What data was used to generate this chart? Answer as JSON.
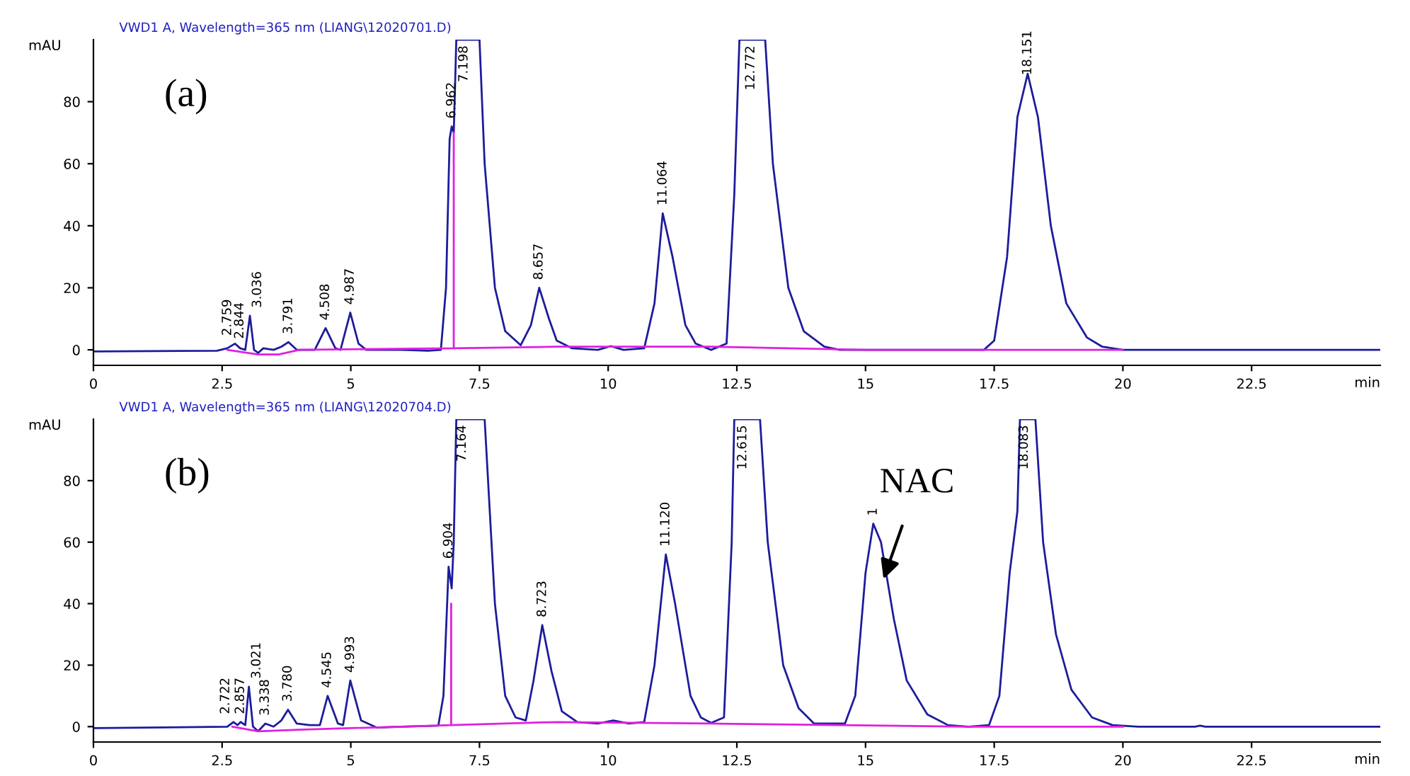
{
  "chart_data": [
    {
      "type": "line",
      "title": "VWD1 A, Wavelength=365 nm (LIANG\\12020701.D)",
      "xlabel": "min",
      "ylabel": "mAU",
      "xlim": [
        0,
        25
      ],
      "ylim": [
        -5,
        100
      ],
      "xticks": [
        0,
        2.5,
        5,
        7.5,
        10,
        12.5,
        15,
        17.5,
        20,
        22.5
      ],
      "yticks": [
        0,
        20,
        40,
        60,
        80
      ],
      "grid": false,
      "legend": false,
      "marker": "none",
      "line_style": "solid",
      "series": [
        {
          "color": "#1c1c9c",
          "x": [
            0,
            2.4,
            2.6,
            2.75,
            2.85,
            2.95,
            3.04,
            3.12,
            3.2,
            3.3,
            3.5,
            3.65,
            3.79,
            3.95,
            4.3,
            4.51,
            4.7,
            4.8,
            4.99,
            5.15,
            5.3,
            6.0,
            6.5,
            6.75,
            6.85,
            6.92,
            6.96,
            7.0,
            7.05,
            7.5,
            7.6,
            7.8,
            8.0,
            8.3,
            8.5,
            8.66,
            8.85,
            9.0,
            9.3,
            9.8,
            10.05,
            10.3,
            10.7,
            10.9,
            11.06,
            11.25,
            11.5,
            11.7,
            12.0,
            12.3,
            12.45,
            12.55,
            13.05,
            13.2,
            13.5,
            13.8,
            14.2,
            14.5,
            15,
            17.3,
            17.5,
            17.75,
            17.95,
            18.15,
            18.35,
            18.6,
            18.9,
            19.3,
            19.6,
            20,
            25
          ],
          "values": [
            -0.5,
            -0.3,
            0.5,
            2,
            0.5,
            0,
            11,
            0,
            -1,
            0.5,
            0,
            1,
            2.5,
            0,
            0,
            7,
            0.5,
            0,
            12,
            2,
            0,
            0,
            -0.3,
            0,
            20,
            68,
            72,
            70,
            100,
            100,
            60,
            20,
            6,
            1.5,
            8,
            20,
            10,
            3,
            0.5,
            0,
            1.2,
            0,
            0.5,
            15,
            44,
            30,
            8,
            2,
            0,
            2,
            50,
            100,
            100,
            60,
            20,
            6,
            1,
            0,
            0,
            0,
            3,
            30,
            75,
            89,
            75,
            40,
            15,
            4,
            1,
            0,
            0
          ]
        },
        {
          "color": "#e020e0",
          "x": [
            2.6,
            3.2,
            3.6,
            4.0,
            7.0,
            7.0,
            7.0,
            9.0,
            12,
            15,
            20
          ],
          "values": [
            0,
            -1.5,
            -1.5,
            0,
            0.5,
            70,
            0.5,
            1,
            1,
            0,
            0
          ]
        }
      ],
      "annotations": [
        {
          "text": "2.759",
          "x": 2.759,
          "y": 2
        },
        {
          "text": "2.844",
          "x": 2.844,
          "y": 1
        },
        {
          "text": "3.036",
          "x": 3.036,
          "y": 11
        },
        {
          "text": "3.791",
          "x": 3.791,
          "y": 2.5
        },
        {
          "text": "4.508",
          "x": 4.508,
          "y": 7
        },
        {
          "text": "4.987",
          "x": 4.987,
          "y": 12
        },
        {
          "text": "6.962",
          "x": 6.962,
          "y": 72
        },
        {
          "text": "7.198",
          "x": 7.198,
          "y": 100
        },
        {
          "text": "8.657",
          "x": 8.657,
          "y": 20
        },
        {
          "text": "11.064",
          "x": 11.064,
          "y": 44
        },
        {
          "text": "12.772",
          "x": 12.772,
          "y": 100
        },
        {
          "text": "18.151",
          "x": 18.151,
          "y": 86
        },
        "(a)"
      ]
    },
    {
      "type": "line",
      "title": "VWD1 A, Wavelength=365 nm (LIANG\\12020704.D)",
      "xlabel": "min",
      "ylabel": "mAU",
      "xlim": [
        0,
        25
      ],
      "ylim": [
        -5,
        100
      ],
      "xticks": [
        0,
        2.5,
        5,
        7.5,
        10,
        12.5,
        15,
        17.5,
        20,
        22.5
      ],
      "yticks": [
        0,
        20,
        40,
        60,
        80
      ],
      "grid": false,
      "legend": false,
      "marker": "none",
      "line_style": "solid",
      "series": [
        {
          "color": "#1c1c9c",
          "x": [
            0,
            2.6,
            2.72,
            2.8,
            2.86,
            2.95,
            3.02,
            3.1,
            3.2,
            3.34,
            3.5,
            3.65,
            3.78,
            3.95,
            4.2,
            4.4,
            4.55,
            4.75,
            4.85,
            4.99,
            5.2,
            5.5,
            6,
            6.7,
            6.8,
            6.9,
            6.96,
            7.0,
            7.05,
            7.6,
            7.8,
            8.0,
            8.2,
            8.4,
            8.55,
            8.72,
            8.9,
            9.1,
            9.4,
            9.8,
            10.1,
            10.4,
            10.7,
            10.9,
            11.12,
            11.3,
            11.6,
            11.8,
            12.0,
            12.25,
            12.4,
            12.45,
            12.95,
            13.1,
            13.4,
            13.7,
            14,
            14.6,
            14.8,
            15.0,
            15.15,
            15.3,
            15.55,
            15.8,
            16.2,
            16.6,
            17,
            17.4,
            17.6,
            17.8,
            17.95,
            18.0,
            18.3,
            18.45,
            18.7,
            19.0,
            19.4,
            19.8,
            20.3,
            21.4,
            21.5,
            21.6,
            25
          ],
          "values": [
            -0.5,
            0,
            1.5,
            0.5,
            1.5,
            0.5,
            13,
            0,
            -1.5,
            1,
            0,
            2,
            5.5,
            1,
            0.5,
            0.5,
            10,
            1,
            0.5,
            15,
            2,
            -0.3,
            0,
            0.3,
            10,
            52,
            45,
            60,
            100,
            100,
            40,
            10,
            3,
            2,
            15,
            33,
            18,
            5,
            1.5,
            1,
            2,
            1,
            1.5,
            20,
            56,
            40,
            10,
            3,
            1.2,
            3,
            60,
            100,
            100,
            60,
            20,
            6,
            1,
            1,
            10,
            50,
            66,
            60,
            35,
            15,
            4,
            0.5,
            0,
            0.5,
            10,
            50,
            70,
            100,
            100,
            60,
            30,
            12,
            3,
            0.5,
            0,
            0,
            0.3,
            0,
            0
          ]
        },
        {
          "color": "#e020e0",
          "x": [
            2.7,
            3.2,
            4.0,
            6.95,
            6.95,
            6.95,
            9,
            12,
            14.5,
            17,
            20
          ],
          "values": [
            0,
            -1.5,
            -1,
            0.5,
            40,
            0.5,
            1.5,
            1,
            0.5,
            0,
            0
          ]
        }
      ],
      "annotations": [
        {
          "text": "2.722",
          "x": 2.722,
          "y": 1.5
        },
        {
          "text": "2.857",
          "x": 2.857,
          "y": 1.5
        },
        {
          "text": "3.021",
          "x": 3.021,
          "y": 13
        },
        {
          "text": "3.338",
          "x": 3.338,
          "y": 1
        },
        {
          "text": "3.780",
          "x": 3.78,
          "y": 5.5
        },
        {
          "text": "4.545",
          "x": 4.545,
          "y": 10
        },
        {
          "text": "4.993",
          "x": 4.993,
          "y": 15
        },
        {
          "text": "6.904",
          "x": 6.904,
          "y": 52
        },
        {
          "text": "7.164",
          "x": 7.164,
          "y": 100
        },
        {
          "text": "8.723",
          "x": 8.723,
          "y": 33
        },
        {
          "text": "11.120",
          "x": 11.12,
          "y": 56
        },
        {
          "text": "12.615",
          "x": 12.615,
          "y": 100
        },
        {
          "text": "1",
          "x": 15.15,
          "y": 66
        },
        {
          "text": "18.083",
          "x": 18.083,
          "y": 100
        },
        "(b)",
        {
          "text": "NAC",
          "x": 15.35,
          "y": 48
        }
      ]
    }
  ]
}
